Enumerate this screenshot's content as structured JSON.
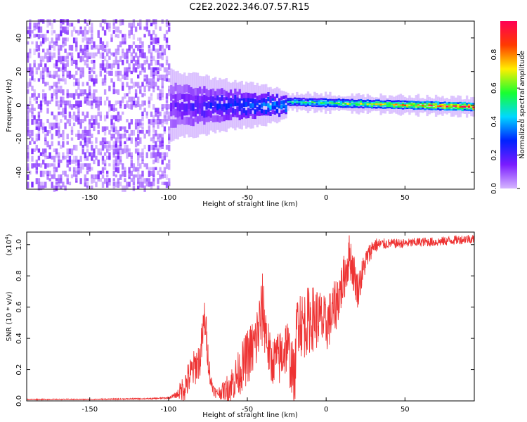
{
  "figure_title": "C2E2.2022.346.07.57.R15",
  "chart_data": [
    {
      "type": "heatmap",
      "title": "",
      "xlabel": "Height of straight line (km)",
      "ylabel": "Frequency (Hz)",
      "xlim": [
        -190,
        94
      ],
      "ylim": [
        -50,
        50
      ],
      "xticks": [
        -150,
        -100,
        -50,
        0,
        50
      ],
      "yticks": [
        -40,
        -20,
        0,
        20,
        40
      ],
      "colorbar": {
        "label": "Normalized spectral amplitude",
        "range": [
          0.0,
          1.0
        ],
        "ticks": [
          0.0,
          0.2,
          0.4,
          0.6,
          0.8
        ],
        "colormap": [
          "#d6b6ff",
          "#7a1cff",
          "#0022ff",
          "#00d8ff",
          "#18ff30",
          "#ffee00",
          "#ff3a00",
          "#ff0055"
        ]
      },
      "regions": [
        {
          "x": [
            -190,
            -100
          ],
          "freq_spread": [
            -50,
            50
          ],
          "amplitude": 0.1,
          "description_color": "#7a1cff"
        },
        {
          "x": [
            -100,
            -25
          ],
          "freq_center": 0,
          "freq_halfwidth": [
            10,
            4
          ],
          "amplitude": [
            0.15,
            0.4
          ]
        },
        {
          "x": [
            -25,
            94
          ],
          "freq_center": [
            2,
            -1
          ],
          "freq_halfwidth": 2,
          "amplitude": [
            0.45,
            0.9
          ]
        }
      ]
    },
    {
      "type": "line",
      "title": "",
      "xlabel": "Height of straight line (km)",
      "ylabel": "SNR (10 * v/v)",
      "exponent_label": "(x10",
      "exponent": "4",
      "xlim": [
        -190,
        94
      ],
      "ylim": [
        0.0,
        1.08
      ],
      "xticks": [
        -150,
        -100,
        -50,
        0,
        50
      ],
      "yticks": [
        0.0,
        0.2,
        0.4,
        0.6,
        0.8,
        1.0
      ],
      "color": "#ee3333",
      "series": [
        {
          "x": [
            -190,
            -150,
            -110,
            -100,
            -95,
            -90,
            -85,
            -80,
            -77,
            -75,
            -73,
            -70,
            -65,
            -60,
            -55,
            -50,
            -45,
            -40,
            -38,
            -35,
            -32,
            -30,
            -25,
            -20,
            -18,
            -15,
            -10,
            -5,
            0,
            5,
            10,
            15,
            20,
            25,
            30,
            40,
            50,
            60,
            70,
            80,
            90,
            94
          ],
          "values": [
            0.01,
            0.01,
            0.015,
            0.02,
            0.04,
            0.1,
            0.2,
            0.28,
            0.55,
            0.3,
            0.12,
            0.05,
            0.07,
            0.12,
            0.2,
            0.3,
            0.38,
            0.62,
            0.45,
            0.25,
            0.3,
            0.28,
            0.38,
            0.15,
            0.6,
            0.5,
            0.55,
            0.55,
            0.5,
            0.6,
            0.75,
            0.95,
            0.72,
            0.9,
            1.0,
            1.01,
            1.01,
            1.02,
            1.02,
            1.03,
            1.04,
            1.04
          ],
          "noise_amplitude": [
            0.003,
            0.003,
            0.004,
            0.005,
            0.02,
            0.1,
            0.12,
            0.12,
            0.15,
            0.1,
            0.06,
            0.03,
            0.06,
            0.12,
            0.15,
            0.18,
            0.2,
            0.25,
            0.2,
            0.15,
            0.15,
            0.18,
            0.2,
            0.18,
            0.25,
            0.22,
            0.22,
            0.2,
            0.18,
            0.18,
            0.15,
            0.15,
            0.12,
            0.08,
            0.05,
            0.03,
            0.03,
            0.03,
            0.03,
            0.03,
            0.03,
            0.03
          ]
        }
      ]
    }
  ]
}
